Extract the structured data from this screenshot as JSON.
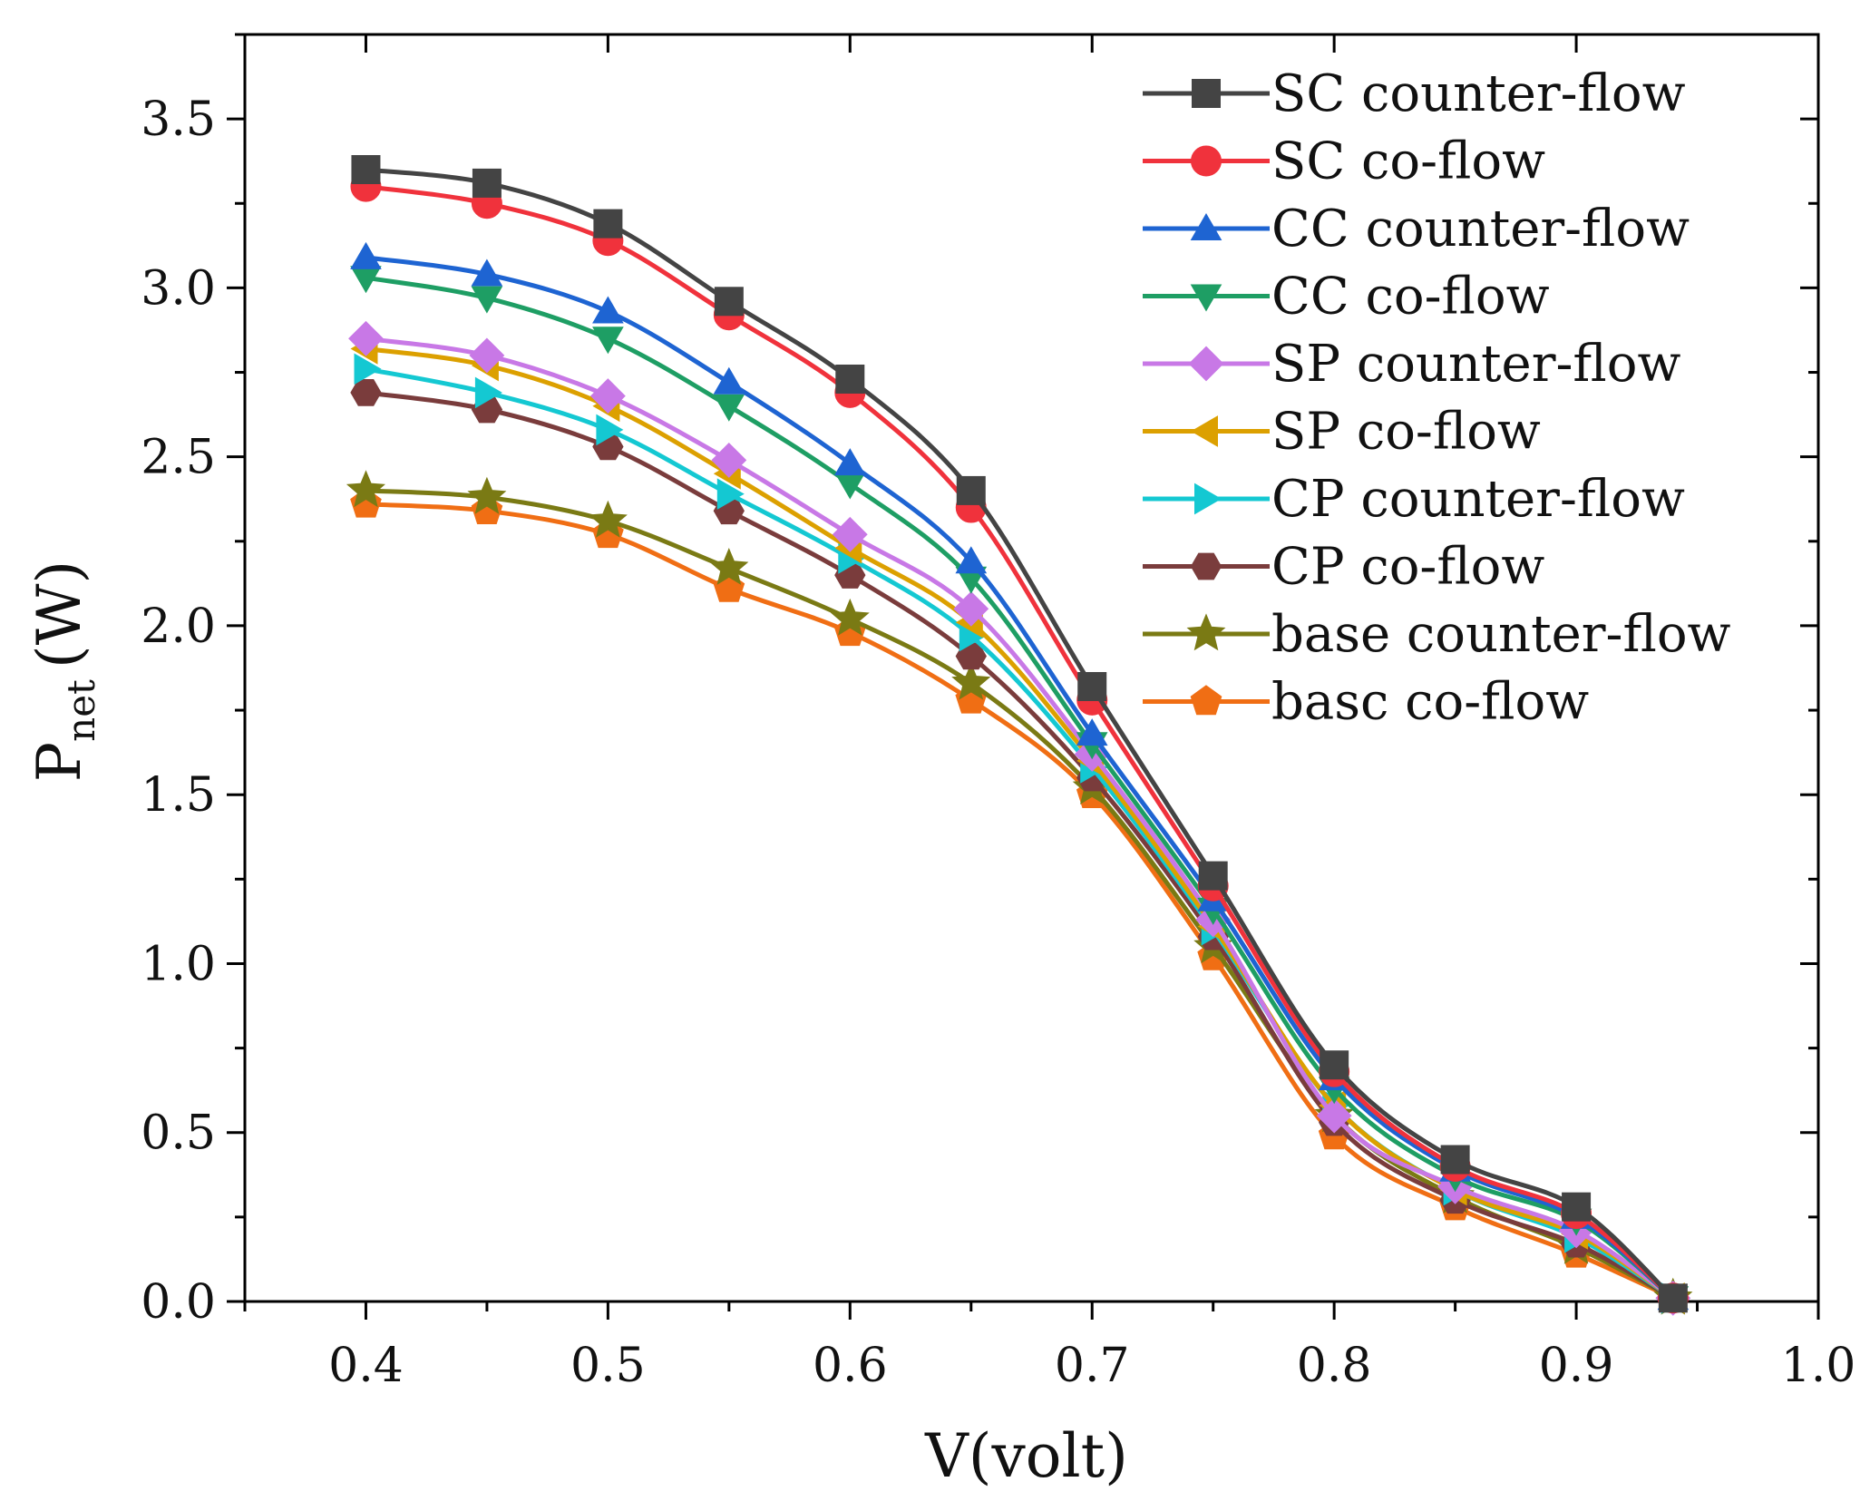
{
  "chart_data": {
    "type": "line",
    "title": "",
    "xlabel": "V(volt)",
    "ylabel": {
      "main": "P",
      "sub": "net",
      "unit": "(W)"
    },
    "xlim": [
      0.35,
      1.0
    ],
    "ylim": [
      0.0,
      3.75
    ],
    "x_ticks": [
      "0.4",
      "0.5",
      "0.6",
      "0.7",
      "0.8",
      "0.9",
      "1.0"
    ],
    "y_ticks": [
      "0.0",
      "0.5",
      "1.0",
      "1.5",
      "2.0",
      "2.5",
      "3.0",
      "3.5"
    ],
    "grid": false,
    "legend_position": "top-right",
    "x": [
      0.4,
      0.45,
      0.5,
      0.55,
      0.6,
      0.65,
      0.7,
      0.75,
      0.8,
      0.85,
      0.9,
      0.94
    ],
    "series": [
      {
        "name": "SC counter-flow",
        "color": "#444444",
        "marker": "square",
        "values": [
          3.35,
          3.31,
          3.19,
          2.96,
          2.73,
          2.4,
          1.82,
          1.26,
          0.7,
          0.42,
          0.28,
          0.01
        ]
      },
      {
        "name": "SC co-flow",
        "color": "#f0323c",
        "marker": "circle",
        "values": [
          3.3,
          3.25,
          3.14,
          2.92,
          2.69,
          2.35,
          1.78,
          1.23,
          0.68,
          0.4,
          0.26,
          0.01
        ]
      },
      {
        "name": "CC counter-flow",
        "color": "#1e64d2",
        "marker": "triangle-up",
        "values": [
          3.09,
          3.04,
          2.93,
          2.72,
          2.48,
          2.19,
          1.68,
          1.19,
          0.66,
          0.39,
          0.25,
          0.01
        ]
      },
      {
        "name": "CC co-flow",
        "color": "#1e9e64",
        "marker": "triangle-down",
        "values": [
          3.03,
          2.97,
          2.85,
          2.65,
          2.42,
          2.14,
          1.65,
          1.16,
          0.63,
          0.37,
          0.24,
          0.01
        ]
      },
      {
        "name": "SP counter-flow",
        "color": "#c878e6",
        "marker": "diamond",
        "values": [
          2.85,
          2.8,
          2.68,
          2.49,
          2.27,
          2.05,
          1.62,
          1.13,
          0.55,
          0.34,
          0.21,
          0.01
        ]
      },
      {
        "name": "SP co-flow",
        "color": "#dca000",
        "marker": "triangle-left",
        "values": [
          2.82,
          2.77,
          2.65,
          2.45,
          2.23,
          2.01,
          1.6,
          1.11,
          0.58,
          0.33,
          0.2,
          0.01
        ]
      },
      {
        "name": "CP counter-flow",
        "color": "#14c8d2",
        "marker": "triangle-right",
        "values": [
          2.76,
          2.69,
          2.58,
          2.39,
          2.2,
          1.97,
          1.58,
          1.1,
          0.58,
          0.33,
          0.19,
          0.01
        ]
      },
      {
        "name": "CP co-flow",
        "color": "#7a3c3c",
        "marker": "hexagon",
        "values": [
          2.69,
          2.64,
          2.53,
          2.34,
          2.15,
          1.91,
          1.55,
          1.08,
          0.53,
          0.3,
          0.17,
          0.01
        ]
      },
      {
        "name": "base counter-flow",
        "color": "#7a7a14",
        "marker": "star",
        "values": [
          2.4,
          2.38,
          2.31,
          2.17,
          2.02,
          1.83,
          1.52,
          1.05,
          0.55,
          0.31,
          0.16,
          0.01
        ]
      },
      {
        "name": "basc co-flow",
        "color": "#f06e14",
        "marker": "pentagon",
        "values": [
          2.36,
          2.34,
          2.27,
          2.11,
          1.98,
          1.78,
          1.5,
          1.02,
          0.49,
          0.28,
          0.14,
          0.01
        ]
      }
    ]
  }
}
